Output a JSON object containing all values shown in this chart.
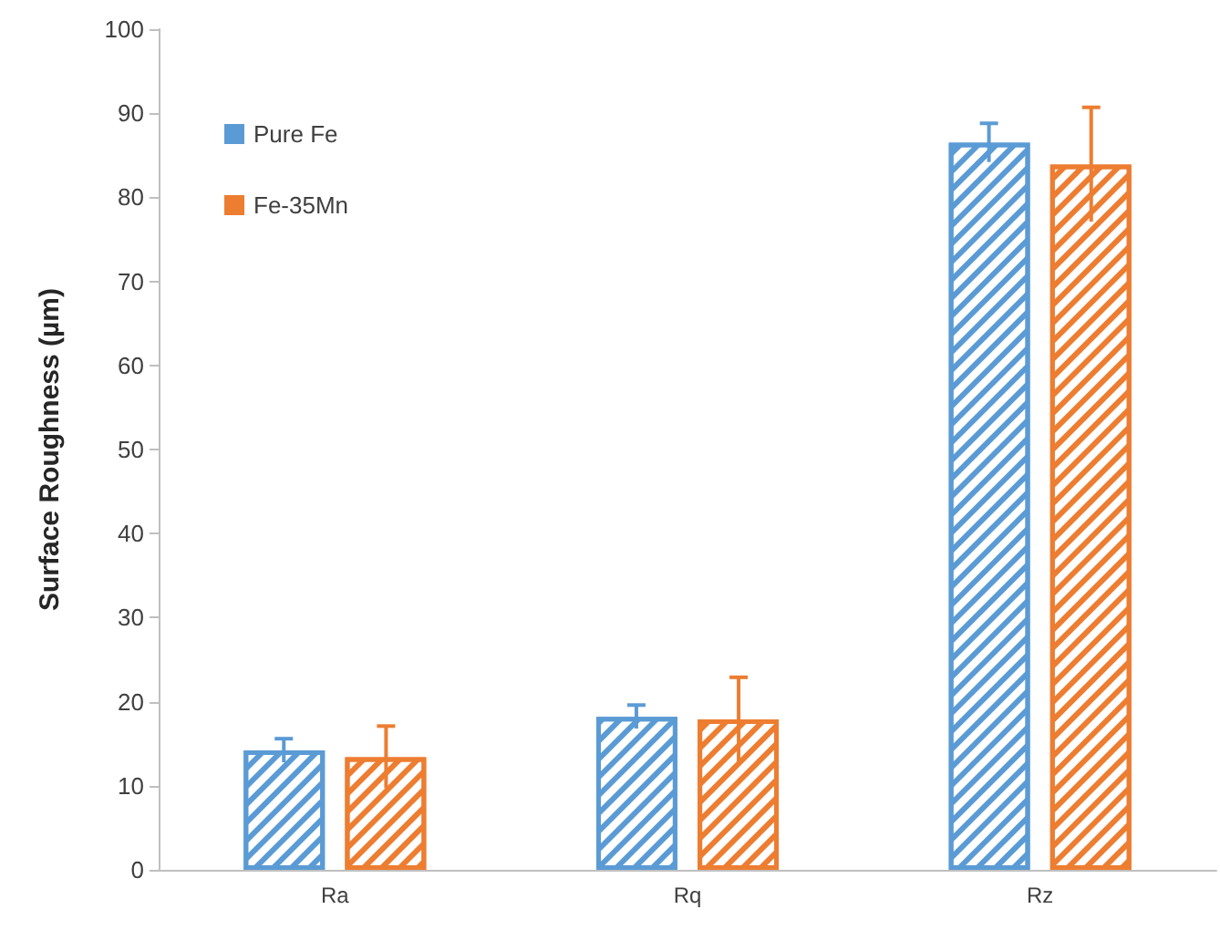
{
  "chart_data": {
    "type": "bar",
    "ylabel": "Surface Roughness (µm)",
    "categories": [
      "Ra",
      "Rq",
      "Rz"
    ],
    "series": [
      {
        "name": "Pure Fe",
        "color": "#5b9bd5",
        "values": [
          14.2,
          18.2,
          86.5
        ],
        "errors": [
          1.4,
          1.4,
          2.3
        ]
      },
      {
        "name": "Fe-35Mn",
        "color": "#ed7d31",
        "values": [
          13.4,
          17.9,
          83.9
        ],
        "errors": [
          3.7,
          5.0,
          6.8
        ]
      }
    ],
    "ylim": [
      0,
      100
    ],
    "yticks": [
      0,
      10,
      20,
      30,
      40,
      50,
      60,
      70,
      80,
      90,
      100
    ],
    "grid": false,
    "legend": "top left"
  }
}
